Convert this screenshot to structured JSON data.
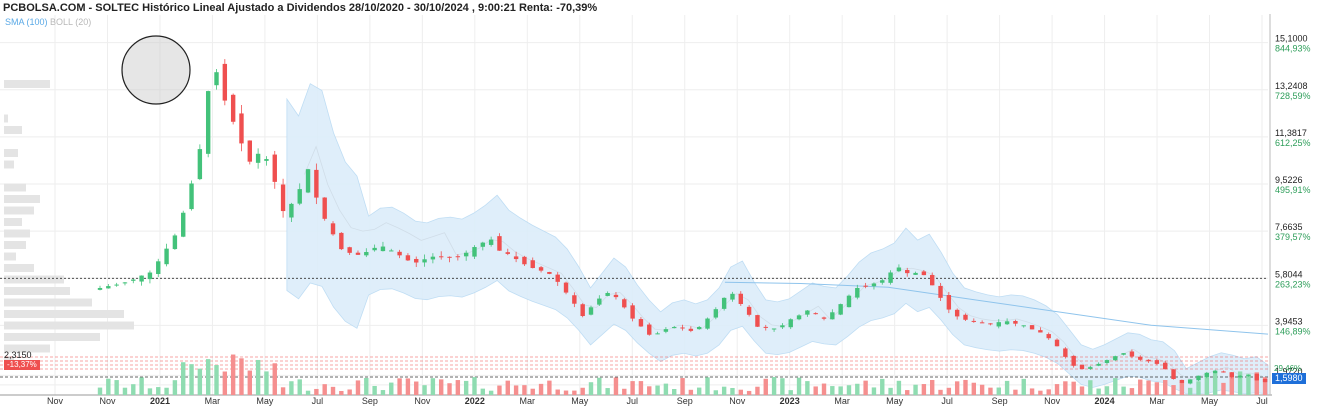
{
  "header": {
    "title": "PCBOLSA.COM - SOLTEC Histórico Lineal Ajustado a Dividendos 28/10/2020 - 30/10/2024 , 9:00:21 Renta: -70,39%"
  },
  "legend": {
    "sma": "SMA (100)",
    "boll": "BOLL (20)"
  },
  "badges": {
    "left_value": "2,3150",
    "left_pct": "-13,37%",
    "right_current": "1,5980",
    "right_pct_small": "29,46%"
  },
  "colors": {
    "up": "#43c27a",
    "down": "#ef4f4f",
    "band": "#dcedfa",
    "band_edge": "#b9daf3",
    "sma": "#8fc4ec",
    "grid": "#eeeeee",
    "volume_up": "#8fdcb1",
    "volume_down": "#f58f8f"
  },
  "chart_data": {
    "type": "candlestick",
    "title": "PCBOLSA.COM - SOLTEC Histórico Lineal Ajustado a Dividendos 28/10/2020 - 30/10/2024 , 9:00:21 Renta: -70,39%",
    "x_tick_labels": [
      "Nov",
      "Nov",
      "2021",
      "Mar",
      "May",
      "Jul",
      "Sep",
      "Nov",
      "2022",
      "Mar",
      "May",
      "Jul",
      "Sep",
      "Nov",
      "2023",
      "Mar",
      "May",
      "Jul",
      "Sep",
      "Nov",
      "2024",
      "Mar",
      "May",
      "Jul"
    ],
    "y_levels": [
      {
        "price": 15.1,
        "label": "15,1000",
        "pct": "844,93%"
      },
      {
        "price": 13.2408,
        "label": "13,2408",
        "pct": "728,59%"
      },
      {
        "price": 11.3817,
        "label": "11,3817",
        "pct": "612,25%"
      },
      {
        "price": 9.5226,
        "label": "9,5226",
        "pct": "495,91%"
      },
      {
        "price": 7.6635,
        "label": "7,6635",
        "pct": "379,57%"
      },
      {
        "price": 5.8044,
        "label": "5,8044",
        "pct": "263,23%"
      },
      {
        "price": 3.9453,
        "label": "3,9453",
        "pct": "146,89%"
      },
      {
        "price": 1.972,
        "label": "1,9720",
        "pct": ""
      },
      {
        "price": 1.598,
        "label": "1,5980",
        "pct": ""
      }
    ],
    "ylim": [
      1.2,
      15.6
    ],
    "series": [
      {
        "name": "SMA (100)"
      },
      {
        "name": "BOLL (20)"
      }
    ],
    "price_path": [
      {
        "t": 0,
        "p": 5.35
      },
      {
        "t": 10,
        "p": 5.6
      },
      {
        "t": 20,
        "p": 6.0
      },
      {
        "t": 26,
        "p": 7.0
      },
      {
        "t": 30,
        "p": 7.8
      },
      {
        "t": 34,
        "p": 9.5
      },
      {
        "t": 37,
        "p": 10.9
      },
      {
        "t": 40,
        "p": 13.2
      },
      {
        "t": 43,
        "p": 14.1
      },
      {
        "t": 46,
        "p": 12.7
      },
      {
        "t": 50,
        "p": 11.6
      },
      {
        "t": 54,
        "p": 10.4
      },
      {
        "t": 58,
        "p": 10.8
      },
      {
        "t": 62,
        "p": 10.0
      },
      {
        "t": 66,
        "p": 8.2
      },
      {
        "t": 70,
        "p": 9.0
      },
      {
        "t": 74,
        "p": 10.1
      },
      {
        "t": 78,
        "p": 8.6
      },
      {
        "t": 82,
        "p": 7.6
      },
      {
        "t": 86,
        "p": 6.9
      },
      {
        "t": 92,
        "p": 6.7
      },
      {
        "t": 98,
        "p": 7.1
      },
      {
        "t": 104,
        "p": 6.8
      },
      {
        "t": 110,
        "p": 6.4
      },
      {
        "t": 118,
        "p": 6.7
      },
      {
        "t": 124,
        "p": 6.6
      },
      {
        "t": 130,
        "p": 6.9
      },
      {
        "t": 136,
        "p": 7.4
      },
      {
        "t": 140,
        "p": 6.9
      },
      {
        "t": 146,
        "p": 6.5
      },
      {
        "t": 152,
        "p": 6.2
      },
      {
        "t": 158,
        "p": 5.9
      },
      {
        "t": 164,
        "p": 5.0
      },
      {
        "t": 168,
        "p": 4.3
      },
      {
        "t": 172,
        "p": 4.8
      },
      {
        "t": 176,
        "p": 5.3
      },
      {
        "t": 180,
        "p": 5.0
      },
      {
        "t": 184,
        "p": 4.4
      },
      {
        "t": 188,
        "p": 3.9
      },
      {
        "t": 192,
        "p": 3.5
      },
      {
        "t": 196,
        "p": 3.8
      },
      {
        "t": 200,
        "p": 3.9
      },
      {
        "t": 206,
        "p": 3.7
      },
      {
        "t": 212,
        "p": 4.3
      },
      {
        "t": 216,
        "p": 5.0
      },
      {
        "t": 220,
        "p": 5.2
      },
      {
        "t": 224,
        "p": 4.5
      },
      {
        "t": 228,
        "p": 3.9
      },
      {
        "t": 234,
        "p": 3.8
      },
      {
        "t": 240,
        "p": 4.2
      },
      {
        "t": 246,
        "p": 4.6
      },
      {
        "t": 250,
        "p": 4.1
      },
      {
        "t": 256,
        "p": 4.7
      },
      {
        "t": 262,
        "p": 5.4
      },
      {
        "t": 268,
        "p": 5.6
      },
      {
        "t": 272,
        "p": 5.8
      },
      {
        "t": 276,
        "p": 6.3
      },
      {
        "t": 280,
        "p": 5.9
      },
      {
        "t": 284,
        "p": 6.1
      },
      {
        "t": 288,
        "p": 5.5
      },
      {
        "t": 292,
        "p": 4.8
      },
      {
        "t": 296,
        "p": 4.3
      },
      {
        "t": 302,
        "p": 4.1
      },
      {
        "t": 308,
        "p": 4.0
      },
      {
        "t": 314,
        "p": 4.1
      },
      {
        "t": 320,
        "p": 3.9
      },
      {
        "t": 326,
        "p": 3.6
      },
      {
        "t": 330,
        "p": 3.2
      },
      {
        "t": 334,
        "p": 2.6
      },
      {
        "t": 338,
        "p": 2.2
      },
      {
        "t": 342,
        "p": 2.3
      },
      {
        "t": 348,
        "p": 2.6
      },
      {
        "t": 354,
        "p": 2.9
      },
      {
        "t": 358,
        "p": 2.6
      },
      {
        "t": 364,
        "p": 2.5
      },
      {
        "t": 368,
        "p": 2.2
      },
      {
        "t": 372,
        "p": 1.6
      },
      {
        "t": 376,
        "p": 1.8
      },
      {
        "t": 380,
        "p": 2.0
      },
      {
        "t": 386,
        "p": 2.2
      },
      {
        "t": 390,
        "p": 1.9
      },
      {
        "t": 396,
        "p": 2.0
      },
      {
        "t": 400,
        "p": 1.72
      }
    ],
    "sma_path": [
      {
        "t": 214,
        "p": 5.65
      },
      {
        "t": 240,
        "p": 5.6
      },
      {
        "t": 270,
        "p": 5.45
      },
      {
        "t": 300,
        "p": 4.95
      },
      {
        "t": 330,
        "p": 4.45
      },
      {
        "t": 360,
        "p": 3.95
      },
      {
        "t": 400,
        "p": 3.6
      }
    ]
  }
}
